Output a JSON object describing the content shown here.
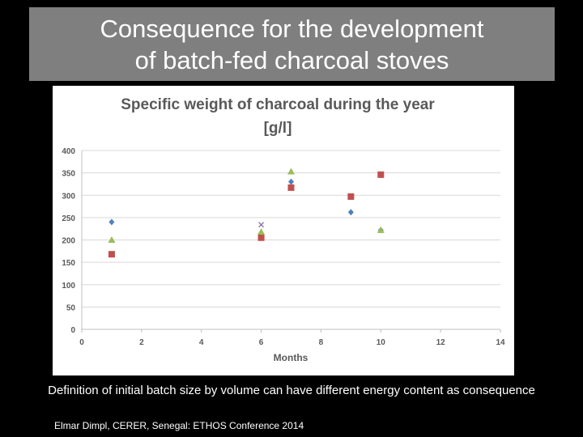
{
  "slide": {
    "title": "Consequence for the development\nof batch-fed charcoal stoves",
    "caption": "Definition of initial batch size by volume can have different energy content as consequence",
    "footer": "Elmar Dimpl, CERER, Senegal: ETHOS Conference 2014"
  },
  "chart_data": {
    "type": "scatter",
    "title": "Specific weight of charcoal during the year",
    "subtitle": "[g/l]",
    "xlabel": "Months",
    "ylabel": "",
    "xlim": [
      0,
      14
    ],
    "ylim": [
      0,
      400
    ],
    "xticks": [
      0,
      2,
      4,
      6,
      8,
      10,
      12,
      14
    ],
    "yticks": [
      0,
      50,
      100,
      150,
      200,
      250,
      300,
      350,
      400
    ],
    "grid": "horizontal",
    "legend": "none",
    "series": [
      {
        "marker": "diamond",
        "color": "#4f81bd",
        "points": [
          [
            1,
            240
          ],
          [
            7,
            330
          ],
          [
            9,
            262
          ],
          [
            10,
            222
          ]
        ]
      },
      {
        "marker": "square",
        "color": "#c0504d",
        "points": [
          [
            1,
            168
          ],
          [
            6,
            205
          ],
          [
            7,
            317
          ],
          [
            9,
            297
          ],
          [
            10,
            346
          ]
        ]
      },
      {
        "marker": "triangle",
        "color": "#9bbb59",
        "points": [
          [
            1,
            200
          ],
          [
            6,
            218
          ],
          [
            7,
            353
          ],
          [
            10,
            222
          ]
        ]
      },
      {
        "marker": "x",
        "color": "#8064a2",
        "points": [
          [
            6,
            234
          ]
        ]
      }
    ]
  }
}
